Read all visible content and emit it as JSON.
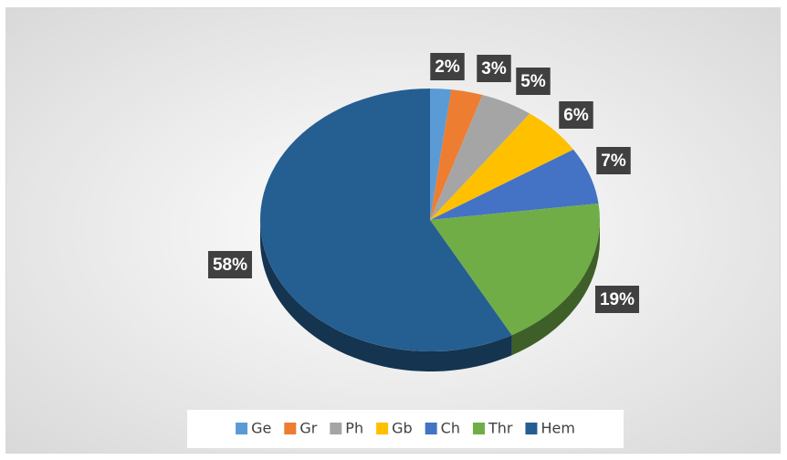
{
  "chart_data": {
    "type": "pie3d",
    "categories": [
      "Ge",
      "Gr",
      "Ph",
      "Gb",
      "Ch",
      "Thr",
      "Hem"
    ],
    "values": [
      2,
      3,
      5,
      6,
      7,
      19,
      58
    ],
    "value_labels": [
      "2%",
      "3%",
      "5%",
      "6%",
      "7%",
      "19%",
      "58%"
    ],
    "colors": [
      "#5b9bd5",
      "#ed7d31",
      "#a5a5a5",
      "#ffc000",
      "#4472c4",
      "#70ad47",
      "#255e91"
    ],
    "legend": "bottom"
  }
}
